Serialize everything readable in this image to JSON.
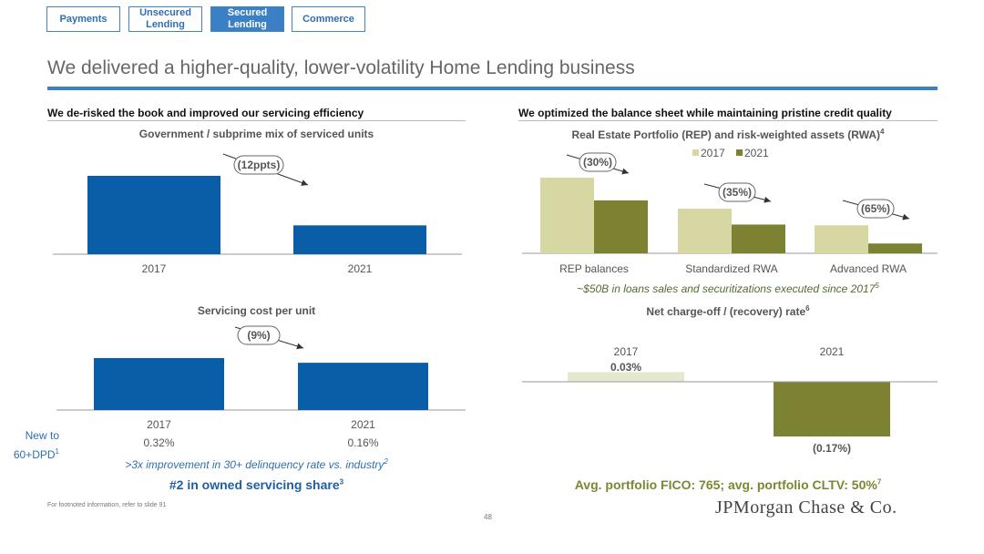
{
  "nav": {
    "tabs": [
      {
        "label": "Payments",
        "active": false
      },
      {
        "label": "Unsecured\nLending",
        "active": false
      },
      {
        "label": "Secured\nLending",
        "active": true
      },
      {
        "label": "Commerce",
        "active": false
      }
    ]
  },
  "page": {
    "title": "We delivered a higher-quality, lower-volatility Home Lending business",
    "footnote": "For footnoted information, refer to slide 91",
    "page_number": "48",
    "logo": "JPMorgan Chase & Co."
  },
  "colors": {
    "accent_blue": "#3b7fc4",
    "bar_blue": "#0a5ea8",
    "olive_light": "#d6d7a3",
    "olive_dark": "#7d8232"
  },
  "left": {
    "heading": "We de-risked the book and improved our servicing efficiency",
    "subtitle1": "Government / subprime mix of serviced units",
    "subtitle2": "Servicing cost per unit",
    "row_label": "New to\n60+DPD",
    "row_label_sup": "1",
    "note": ">3x improvement in 30+ delinquency rate vs. industry",
    "note_sup": "2",
    "highlight": "#2 in owned servicing share",
    "highlight_sup": "3"
  },
  "right": {
    "heading": "We optimized the balance sheet while maintaining pristine credit quality",
    "subtitle1": "Real Estate Portfolio (REP) and risk-weighted assets (RWA)",
    "subtitle1_sup": "4",
    "note": "~$50B in loans sales and securitizations executed since 2017",
    "note_sup": "5",
    "subtitle2": "Net charge-off / (recovery) rate",
    "subtitle2_sup": "6",
    "highlight": "Avg. portfolio FICO: 765; avg. portfolio CLTV: 50%",
    "highlight_sup": "7"
  },
  "chart_data": [
    {
      "type": "bar",
      "title": "Government / subprime mix of serviced units",
      "categories": [
        "2017",
        "2021"
      ],
      "values": [
        19,
        7
      ],
      "annotation": "(12ppts)",
      "ylim": [
        0,
        22
      ]
    },
    {
      "type": "bar",
      "title": "Servicing cost per unit",
      "categories": [
        "2017",
        "2021"
      ],
      "values": [
        100,
        91
      ],
      "annotation": "(9%)",
      "data_table": {
        "label": "New to 60+DPD",
        "values": [
          "0.32%",
          "0.16%"
        ]
      },
      "ylim": [
        0,
        130
      ]
    },
    {
      "type": "bar",
      "title": "Real Estate Portfolio (REP) and risk-weighted assets (RWA)",
      "categories": [
        "REP balances",
        "Standardized RWA",
        "Advanced RWA"
      ],
      "series": [
        {
          "name": "2017",
          "values": [
            100,
            59,
            37
          ]
        },
        {
          "name": "2021",
          "values": [
            70,
            38,
            13
          ]
        }
      ],
      "annotations": [
        "(30%)",
        "(35%)",
        "(65%)"
      ],
      "legend": "top-center",
      "ylim": [
        0,
        100
      ]
    },
    {
      "type": "bar",
      "title": "Net charge-off / (recovery) rate",
      "categories": [
        "2017",
        "2021"
      ],
      "values": [
        0.03,
        -0.17
      ],
      "value_labels": [
        "0.03%",
        "(0.17%)"
      ],
      "ylim": [
        -0.17,
        0.03
      ]
    }
  ]
}
